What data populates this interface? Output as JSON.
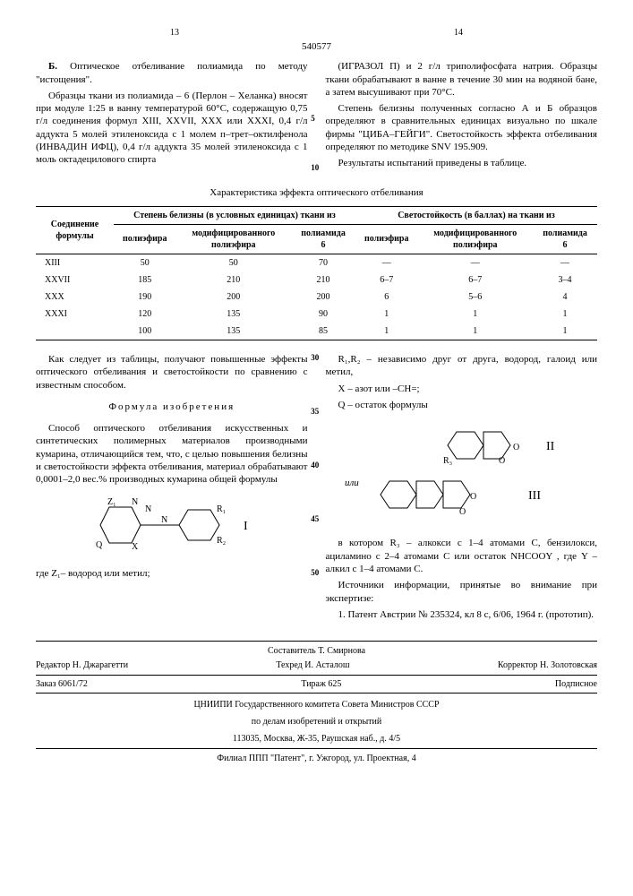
{
  "patent_number": "540577",
  "page_left": "13",
  "page_right": "14",
  "left_col": {
    "p1_bold": "Б.",
    "p1": " Оптическое отбеливание полиамида по методу \"истощения\".",
    "p2": "Образцы ткани из полиамида – 6 (Перлон – Хеланка) вносят при модуле 1:25 в ванну температурой 60°С, содержащую 0,75 г/л соединения формул XIII, XXVII, XXX или XXXI, 0,4 г/л аддукта 5 молей этиленоксида с 1 молем п–трет–октилфенола (ИНВАДИН ИФЦ), 0,4 г/л аддукта 35 молей этиленоксида с 1 моль октадецилового спирта"
  },
  "right_col": {
    "p1": "(ИГРАЗОЛ П) и 2 г/л триполифосфата натрия. Образцы ткани обрабатывают в ванне в течение 30 мин на водяной бане, а затем высушивают при 70°С.",
    "p2": "Степень белизны полученных согласно А и Б образцов определяют в сравнительных единицах визуально по шкале фирмы \"ЦИБА–ГЕЙГИ\". Светостойкость эффекта отбеливания определяют по методике SNV 195.909.",
    "p3": "Результаты испытаний приведены в таблице."
  },
  "table": {
    "title": "Характеристика эффекта оптического отбеливания",
    "h_compound": "Соединение формулы",
    "h_whiteness": "Степень белизны (в условных единицах) ткани из",
    "h_lightfast": "Светостойкость (в баллах) на ткани из",
    "sub1": "полиэфира",
    "sub2": "модифицированного полиэфира",
    "sub3": "полиамида 6",
    "sub4": "полиэфира",
    "sub5": "модифицированного полиэфира",
    "sub6": "полиамида 6",
    "rows": [
      {
        "c": "XIII",
        "v": [
          "50",
          "50",
          "70",
          "—",
          "—",
          "—"
        ]
      },
      {
        "c": "XXVII",
        "v": [
          "185",
          "210",
          "210",
          "6–7",
          "6–7",
          "3–4"
        ]
      },
      {
        "c": "XXX",
        "v": [
          "190",
          "200",
          "200",
          "6",
          "5–6",
          "4"
        ]
      },
      {
        "c": "XXXI",
        "v": [
          "120",
          "135",
          "90",
          "1",
          "1",
          "1"
        ]
      },
      {
        "c": "",
        "v": [
          "100",
          "135",
          "85",
          "1",
          "1",
          "1"
        ]
      }
    ]
  },
  "bottom_left": {
    "p1": "Как следует из таблицы, получают повышенные эффекты оптического отбеливания и светостойкости по сравнению с известным способом.",
    "formula_head": "Формула изобретения",
    "p2": "Способ оптического отбеливания искусственных и синтетических полимерных материалов производными кумарина, отличающийся тем, что, с целью повышения белизны и светостойкости эффекта отбеливания, материал обрабатывают 0,0001–2,0 вес.% производных кумарина общей формулы",
    "p3": "где Z₁– водород или метил;",
    "roman1": "I"
  },
  "bottom_right": {
    "p1": "R₁,R₂ – независимо друг от друга, водород, галоид или метил,",
    "p2": "X – азот или –CH=;",
    "p3": "Q – остаток формулы",
    "roman2": "II",
    "roman3": "III",
    "p4_pre": "или",
    "p4": "в котором R₃ – алкокси с 1–4 атомами С, бензилокси, ациламино с 2–4 атомами С или остаток   NHCOOY   , где Y   – алкил с 1–4 атомами С.",
    "p5": "Источники информации, принятые во внимание при экспертизе:",
    "p6": "1. Патент Австрии № 235324, кл 8 с, 6/06, 1964 г. (прототип)."
  },
  "footer": {
    "compiler_label": "Составитель",
    "compiler": "Т. Смирнова",
    "editor_label": "Редактор",
    "editor": "Н. Джарагетти",
    "techred_label": "Техред",
    "techred": "И. Асталош",
    "corrector_label": "Корректор",
    "corrector": "Н. Золотовская",
    "order_label": "Заказ",
    "order": "6061/72",
    "tirage_label": "Тираж",
    "tirage": "625",
    "subscr": "Подписное",
    "org1": "ЦНИИПИ Государственного комитета Совета Министров СССР",
    "org2": "по делам изобретений и открытий",
    "addr": "113035, Москва, Ж-35, Раушская наб., д. 4/5",
    "filial": "Филиал ППП \"Патент\", г. Ужгород, ул. Проектная, 4"
  },
  "margin_nums": [
    "5",
    "10",
    "30",
    "35",
    "40",
    "45",
    "50"
  ]
}
